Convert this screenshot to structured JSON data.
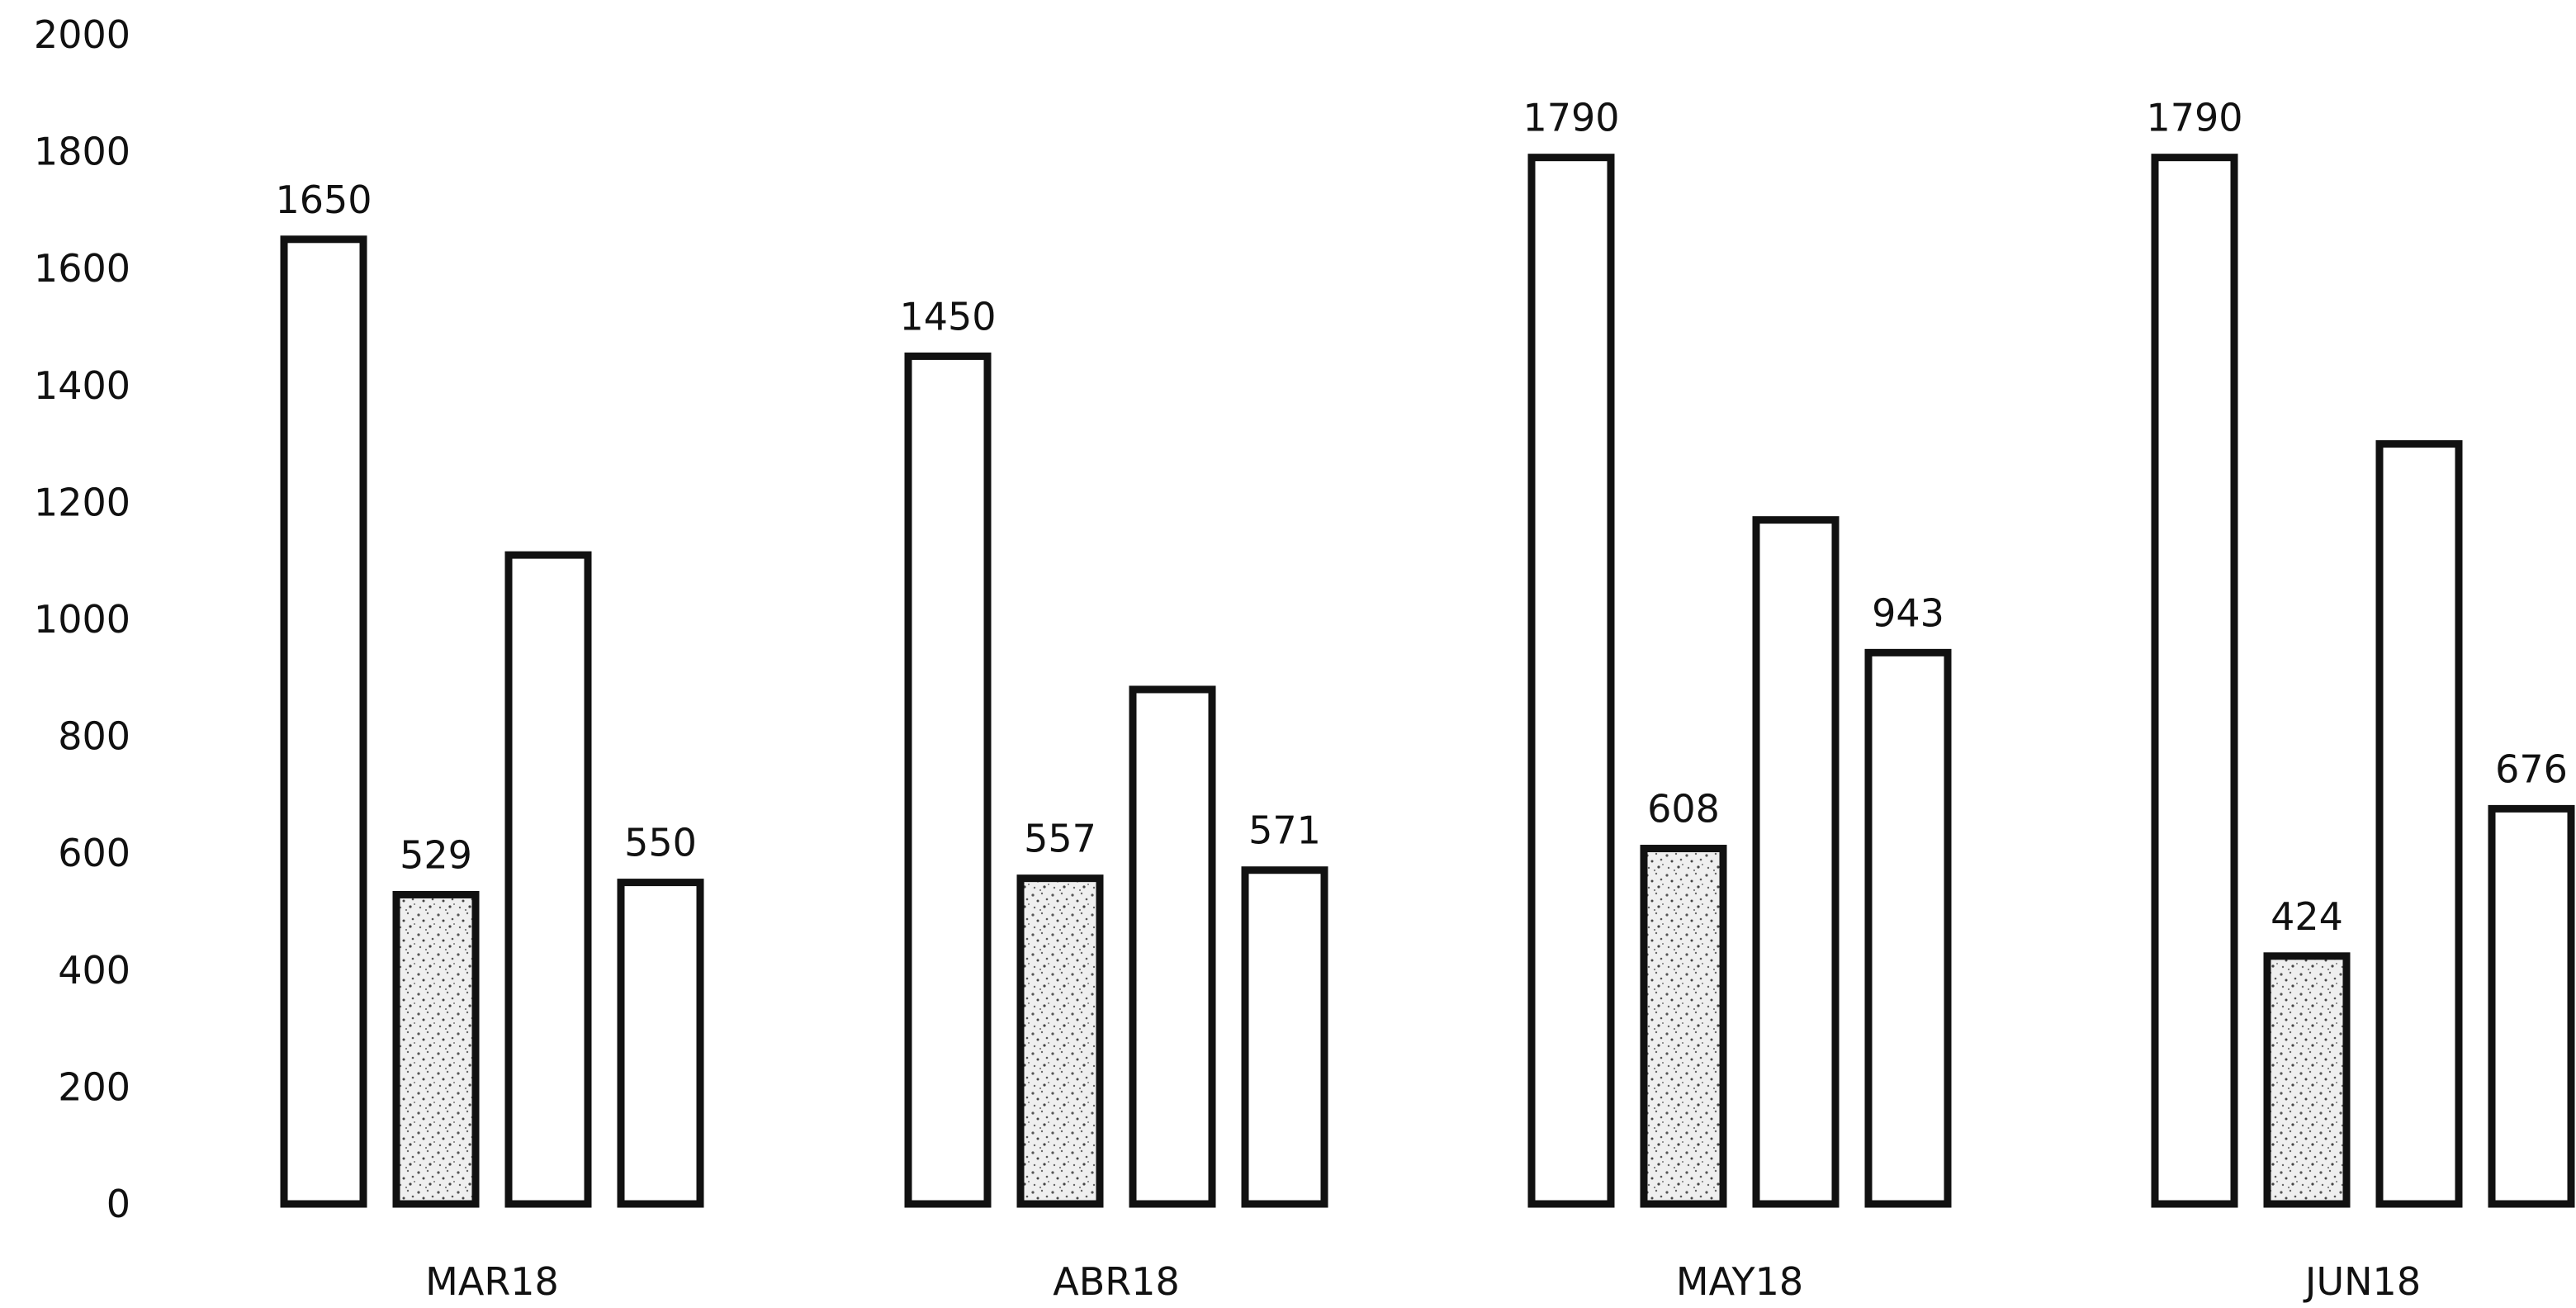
{
  "chart_data": {
    "type": "bar",
    "title": "",
    "xlabel": "",
    "ylabel": "",
    "ylim": [
      0,
      2000
    ],
    "yticks": [
      0,
      200,
      400,
      600,
      800,
      1000,
      1200,
      1400,
      1600,
      1800,
      2000
    ],
    "grid": false,
    "legend": "none",
    "categories": [
      "MAR18",
      "ABR18",
      "MAY18",
      "JUN18"
    ],
    "series": [
      {
        "values": [
          1650,
          1450,
          1790,
          1790
        ],
        "labels": [
          "1650",
          "1450",
          "1790",
          "1790"
        ],
        "fill": "#ffffff",
        "pattern": "none"
      },
      {
        "values": [
          529,
          557,
          608,
          424
        ],
        "labels": [
          "529",
          "557",
          "608",
          "424"
        ],
        "fill": "#e6e6e6",
        "pattern": "speckle"
      },
      {
        "values": [
          1110,
          880,
          1170,
          1300
        ],
        "labels": [
          "",
          "",
          "",
          ""
        ],
        "fill": "#ffffff",
        "pattern": "none"
      },
      {
        "values": [
          550,
          571,
          943,
          676
        ],
        "labels": [
          "550",
          "571",
          "943",
          "676"
        ],
        "fill": "#ffffff",
        "pattern": "none"
      }
    ]
  }
}
